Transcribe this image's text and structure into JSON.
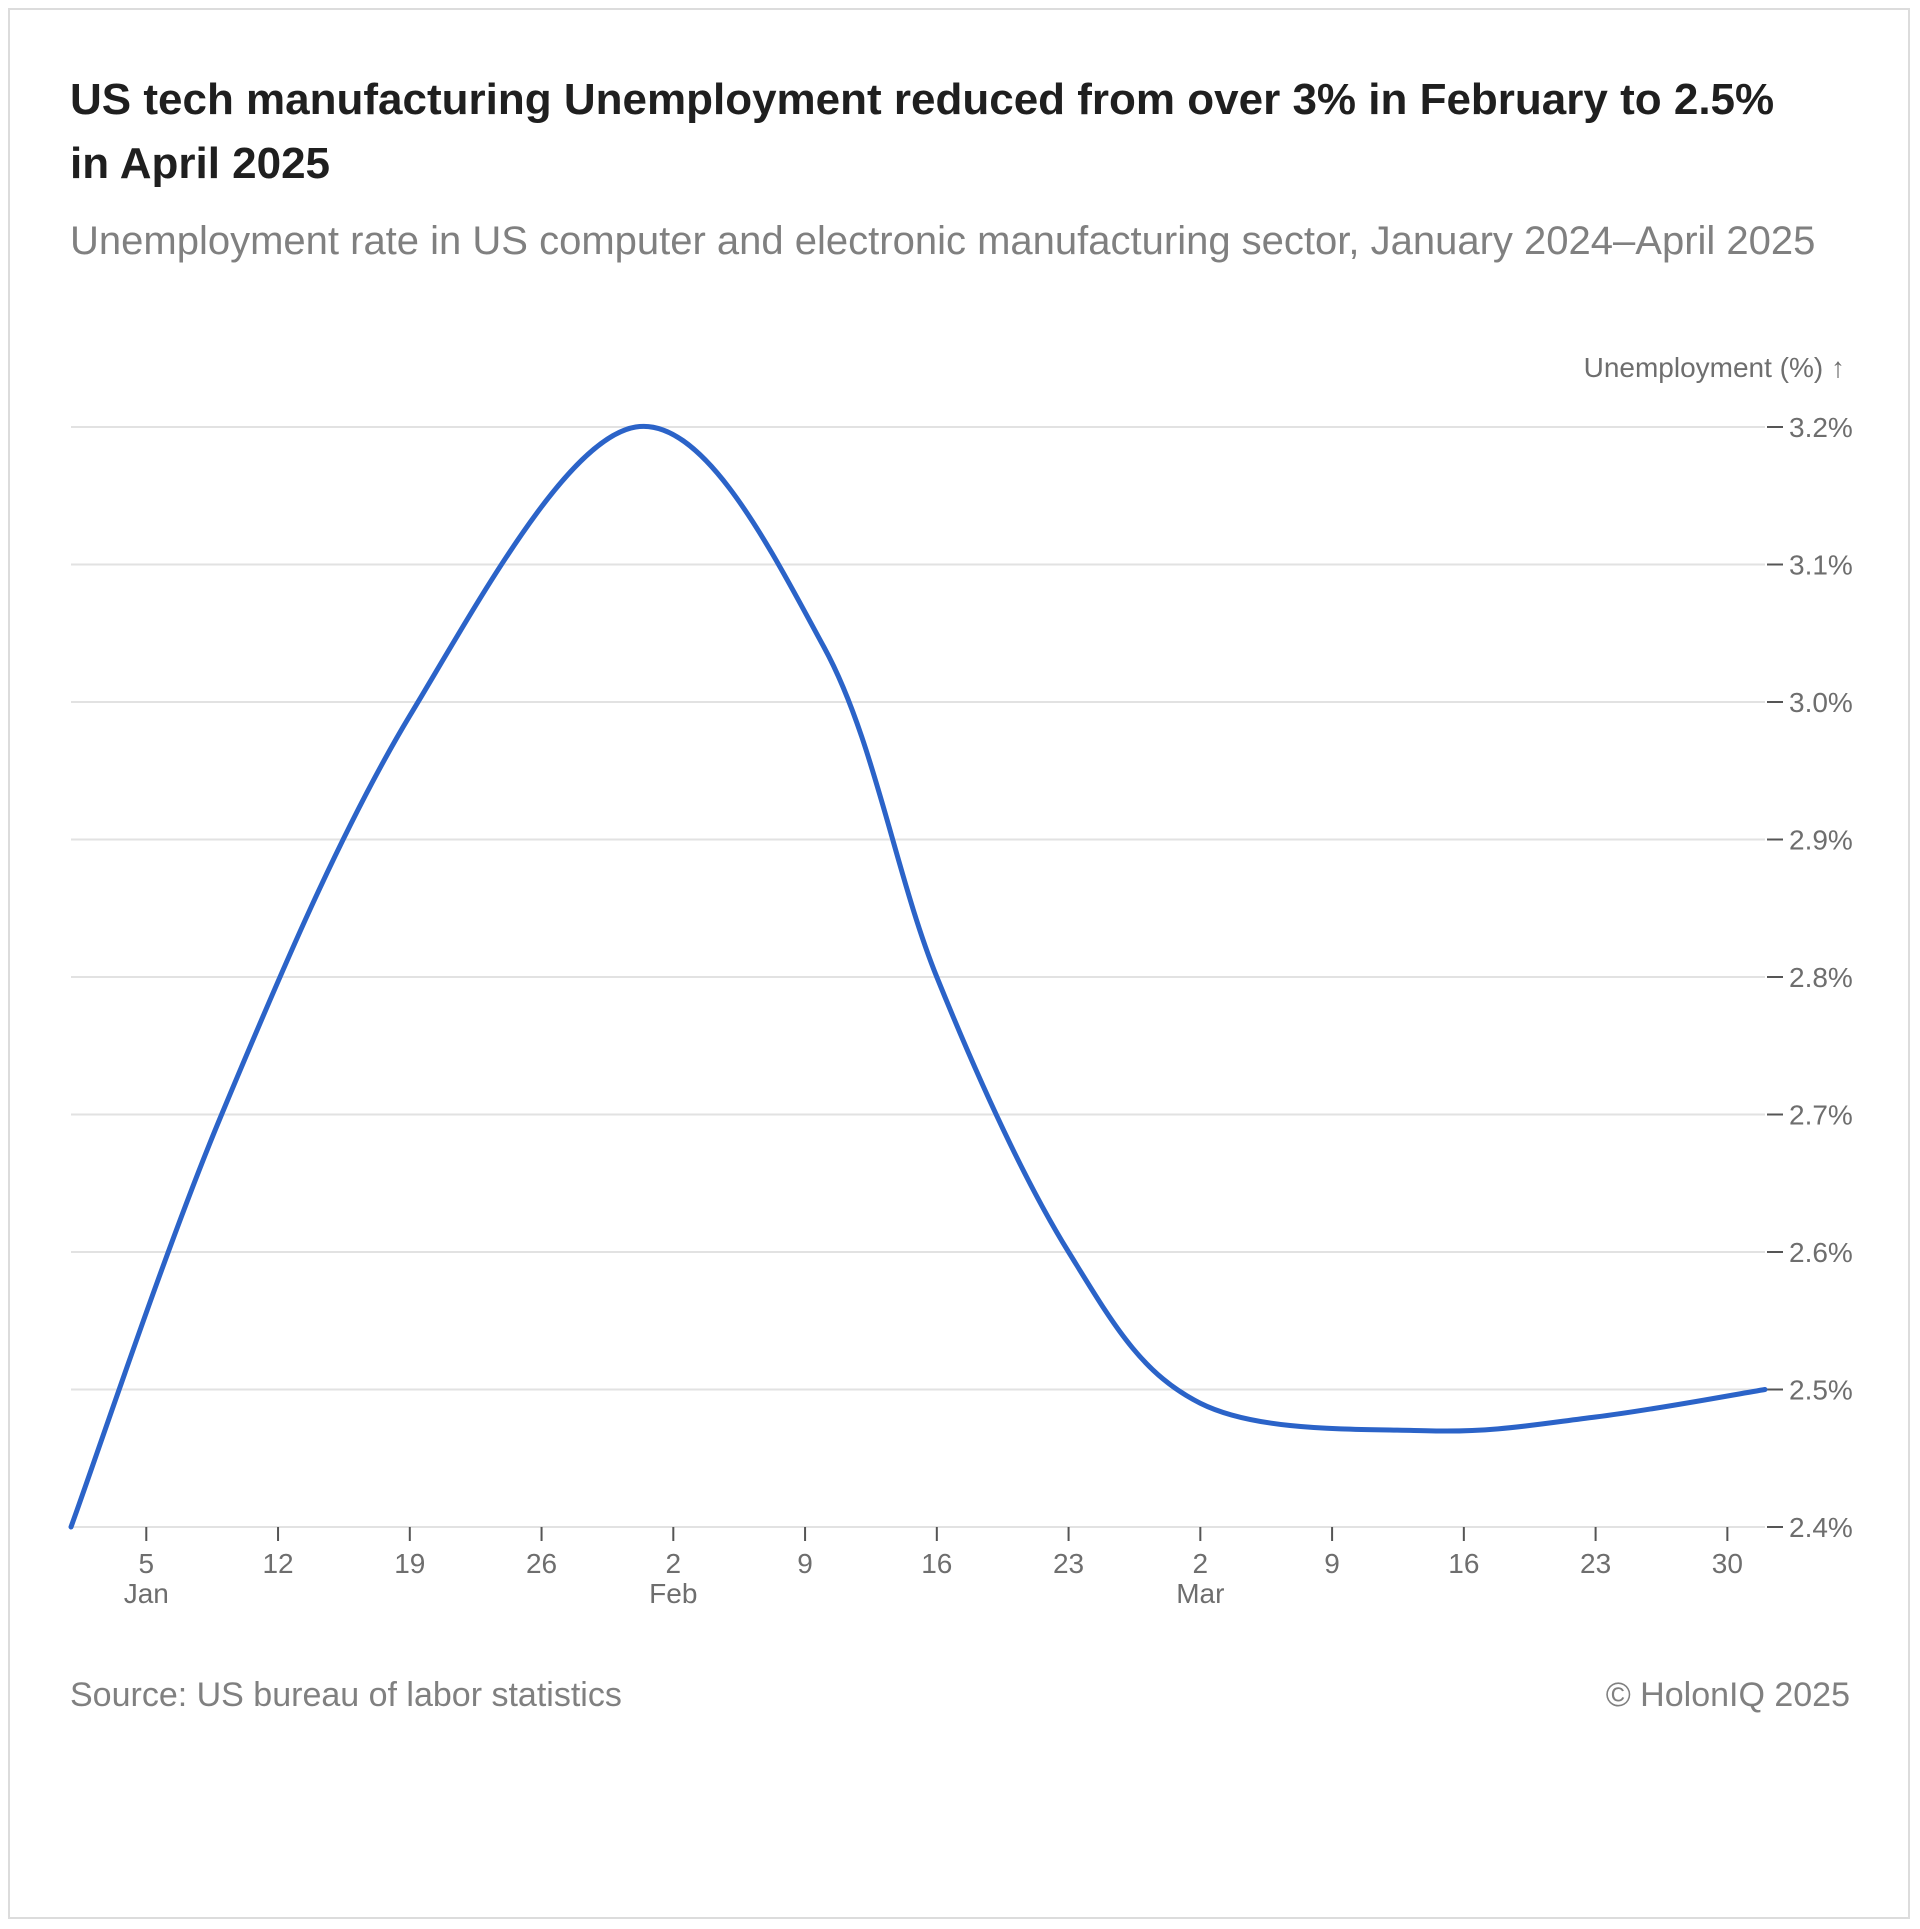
{
  "title": "US tech manufacturing Unemployment reduced from over 3% in February to 2.5% in April 2025",
  "subtitle": "Unemployment rate in US computer and electronic manufacturing sector, January 2024–April 2025",
  "footer": {
    "source": "Source: US bureau of labor statistics",
    "copyright": "© HolonIQ 2025"
  },
  "colors": {
    "line": "#2b63c8",
    "grid": "#e2e2e2",
    "tick_text": "#6e6e6e"
  },
  "chart_data": {
    "type": "line",
    "title": "US tech manufacturing Unemployment reduced from over 3% in February to 2.5% in April 2025",
    "ylabel": "Unemployment (%) ↑",
    "xlabel": "",
    "y_axis_position": "right",
    "ylim": [
      2.4,
      3.2
    ],
    "yticks": [
      {
        "value": 2.4,
        "label": "2.4%"
      },
      {
        "value": 2.5,
        "label": "2.5%"
      },
      {
        "value": 2.6,
        "label": "2.6%"
      },
      {
        "value": 2.7,
        "label": "2.7%"
      },
      {
        "value": 2.8,
        "label": "2.8%"
      },
      {
        "value": 2.9,
        "label": "2.9%"
      },
      {
        "value": 3.0,
        "label": "3.0%"
      },
      {
        "value": 3.1,
        "label": "3.1%"
      },
      {
        "value": 3.2,
        "label": "3.2%"
      }
    ],
    "xlim": [
      "2025-01-01",
      "2025-04-01"
    ],
    "xticks": [
      {
        "date": "2025-01-05",
        "label": "5",
        "sublabel": "Jan"
      },
      {
        "date": "2025-01-12",
        "label": "12",
        "sublabel": ""
      },
      {
        "date": "2025-01-19",
        "label": "19",
        "sublabel": ""
      },
      {
        "date": "2025-01-26",
        "label": "26",
        "sublabel": ""
      },
      {
        "date": "2025-02-02",
        "label": "2",
        "sublabel": "Feb"
      },
      {
        "date": "2025-02-09",
        "label": "9",
        "sublabel": ""
      },
      {
        "date": "2025-02-16",
        "label": "16",
        "sublabel": ""
      },
      {
        "date": "2025-02-23",
        "label": "23",
        "sublabel": ""
      },
      {
        "date": "2025-03-02",
        "label": "2",
        "sublabel": "Mar"
      },
      {
        "date": "2025-03-09",
        "label": "9",
        "sublabel": ""
      },
      {
        "date": "2025-03-16",
        "label": "16",
        "sublabel": ""
      },
      {
        "date": "2025-03-23",
        "label": "23",
        "sublabel": ""
      },
      {
        "date": "2025-03-30",
        "label": "30",
        "sublabel": ""
      }
    ],
    "grid": true,
    "series": [
      {
        "color": "#2b63c8",
        "points": [
          {
            "x": "2025-01-01",
            "y": 2.4
          },
          {
            "x": "2025-01-09",
            "y": 2.7
          },
          {
            "x": "2025-01-19",
            "y": 2.99
          },
          {
            "x": "2025-01-31",
            "y": 3.2
          },
          {
            "x": "2025-02-10",
            "y": 3.04
          },
          {
            "x": "2025-02-16",
            "y": 2.8
          },
          {
            "x": "2025-02-23",
            "y": 2.6
          },
          {
            "x": "2025-03-02",
            "y": 2.49
          },
          {
            "x": "2025-03-14",
            "y": 2.47
          },
          {
            "x": "2025-03-23",
            "y": 2.48
          },
          {
            "x": "2025-04-01",
            "y": 2.5
          }
        ]
      }
    ]
  }
}
